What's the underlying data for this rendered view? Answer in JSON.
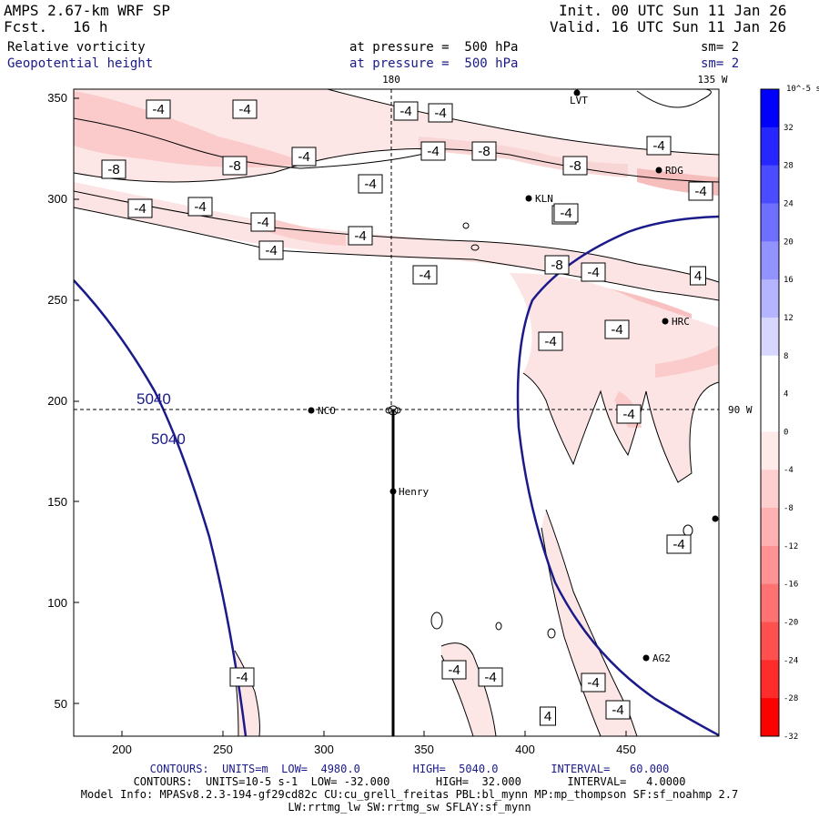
{
  "header": {
    "model": "AMPS 2.67-km WRF SP",
    "fcst_label": "Fcst.",
    "fcst_value": "16 h",
    "init": "Init. 00 UTC Sun 11 Jan 26",
    "valid": "Valid. 16 UTC Sun 11 Jan 26",
    "field1": "Relative vorticity",
    "field2": "Geopotential height",
    "pressure_label1": "at pressure =  500 hPa",
    "pressure_label2": "at pressure =  500 hPa",
    "sm1": "sm= 2",
    "sm2": "sm= 2"
  },
  "map": {
    "lon_top_180": "180",
    "lon_top_135": "135 W",
    "lon_right_90": "90 W",
    "y_ticks": [
      "350",
      "300",
      "250",
      "200",
      "150",
      "100",
      "50"
    ],
    "x_ticks": [
      "200",
      "250",
      "300",
      "350",
      "400",
      "450"
    ],
    "stations": [
      "LVT",
      "RDG",
      "KLN",
      "HRC",
      "NCO",
      "Henry",
      "AG2"
    ],
    "height_labels": [
      "5040",
      "5040"
    ],
    "vort_labels": [
      "-4",
      "-4",
      "-4",
      "-4",
      "-4",
      "-8",
      "-8",
      "-4",
      "-8",
      "-4",
      "-4",
      "-4",
      "-4",
      "-4",
      "-8",
      "-4",
      "-4",
      "-4",
      "-4",
      "-8",
      "-4",
      "-4",
      "-4",
      "-4",
      "-4",
      "-4",
      "-4",
      "-4",
      "-4",
      "-4",
      "-4",
      "-4",
      "-4",
      "4",
      "4"
    ]
  },
  "colorbar": {
    "unit": "10^-5 s^-1",
    "labels": [
      "32",
      "28",
      "24",
      "20",
      "16",
      "12",
      "8",
      "4",
      "0",
      "-4",
      "-8",
      "-12",
      "-16",
      "-20",
      "-24",
      "-28",
      "-32"
    ],
    "colors": [
      "#0000ff",
      "#2626ff",
      "#4b4bff",
      "#6f6fff",
      "#9393ff",
      "#b4b4ff",
      "#d6d6ff",
      "#ffffff",
      "#ffffff",
      "#ffeaea",
      "#ffcfcf",
      "#ffb1b1",
      "#ff9292",
      "#ff7272",
      "#ff5050",
      "#ff2c2c",
      "#ff0000"
    ]
  },
  "footer": {
    "contours_height": "CONTOURS:  UNITS=m  LOW=  4980.0        HIGH=  5040.0        INTERVAL=   60.000",
    "contours_vort": "CONTOURS:  UNITS=10-5 s-1  LOW= -32.000       HIGH=  32.000       INTERVAL=   4.0000",
    "model_info": "Model Info: MPASv8.2.3-194-gf29cd82c CU:cu_grell_freitas PBL:bl_mynn MP:mp_thompson SF:sf_noahmp 2.7",
    "model_info2": "LW:rrtmg_lw SW:rrtmg_sw SFLAY:sf_mynn"
  }
}
